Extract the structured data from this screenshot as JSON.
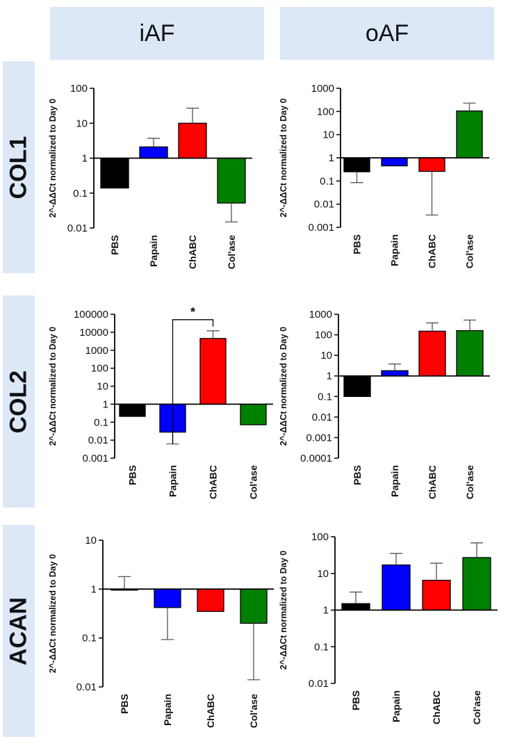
{
  "columns": [
    "iAF",
    "oAF"
  ],
  "rows": [
    "COL1",
    "COL2",
    "ACAN"
  ],
  "colors": {
    "PBS": "#000000",
    "Papain": "#0000ff",
    "ChABC": "#ff0000",
    "Col'ase": "#008000",
    "header_bg": "#dce8f6"
  },
  "chart_data": [
    {
      "type": "bar",
      "panel": "COL1-iAF",
      "title": "",
      "ylabel": "2^-ΔΔCt normalized to Day 0",
      "yscale": "log",
      "baseline": 1,
      "ylim": [
        0.01,
        100
      ],
      "yticks": [
        0.01,
        0.1,
        1,
        10,
        100
      ],
      "ytick_labels": [
        "0.01",
        "0.1",
        "1",
        "10",
        "100"
      ],
      "categories": [
        "PBS",
        "Papain",
        "ChABC",
        "Col'ase"
      ],
      "values": [
        0.14,
        2.1,
        10,
        0.052
      ],
      "error_ends": [
        null,
        3.7,
        27,
        0.015
      ]
    },
    {
      "type": "bar",
      "panel": "COL1-oAF",
      "title": "",
      "ylabel": "2^-ΔΔCt normalized to Day 0",
      "yscale": "log",
      "baseline": 1,
      "ylim": [
        0.001,
        1000
      ],
      "yticks": [
        0.001,
        0.01,
        0.1,
        1,
        10,
        100,
        1000
      ],
      "ytick_labels": [
        "0.001",
        "0.01",
        "0.1",
        "1",
        "10",
        "100",
        "1000"
      ],
      "categories": [
        "PBS",
        "Papain",
        "ChABC",
        "Col'ase"
      ],
      "values": [
        0.25,
        0.45,
        0.26,
        105
      ],
      "error_ends": [
        0.085,
        null,
        0.0034,
        230
      ]
    },
    {
      "type": "bar",
      "panel": "COL2-iAF",
      "title": "",
      "ylabel": "2^-ΔΔCt normalized to Day 0",
      "yscale": "log",
      "baseline": 1,
      "ylim": [
        0.001,
        100000
      ],
      "yticks": [
        0.001,
        0.01,
        0.1,
        1,
        10,
        100,
        1000,
        10000,
        100000
      ],
      "ytick_labels": [
        "0.001",
        "0.01",
        "0.1",
        "1",
        "10",
        "100",
        "1000",
        "10000",
        "100000"
      ],
      "categories": [
        "PBS",
        "Papain",
        "ChABC",
        "Col'ase"
      ],
      "values": [
        0.21,
        0.028,
        4500,
        0.072
      ],
      "error_ends": [
        null,
        0.0062,
        12000,
        null
      ],
      "annotation": {
        "text": "*",
        "between": [
          "Papain",
          "ChABC"
        ],
        "y": 50000
      }
    },
    {
      "type": "bar",
      "panel": "COL2-oAF",
      "title": "",
      "ylabel": "2^-ΔΔCt normalized to Day 0",
      "yscale": "log",
      "baseline": 1,
      "ylim": [
        0.0001,
        1000
      ],
      "yticks": [
        0.0001,
        0.001,
        0.01,
        0.1,
        1,
        10,
        100,
        1000
      ],
      "ytick_labels": [
        "0.0001",
        "0.001",
        "0.01",
        "0.1",
        "1",
        "10",
        "100",
        "1000"
      ],
      "categories": [
        "PBS",
        "Papain",
        "ChABC",
        "Col'ase"
      ],
      "values": [
        0.1,
        1.8,
        150,
        160
      ],
      "error_ends": [
        null,
        3.8,
        380,
        520
      ]
    },
    {
      "type": "bar",
      "panel": "ACAN-iAF",
      "title": "",
      "ylabel": "2^-ΔΔCt normalized to Day 0",
      "yscale": "log",
      "baseline": 1,
      "ylim": [
        0.01,
        10
      ],
      "yticks": [
        0.01,
        0.1,
        1,
        10
      ],
      "ytick_labels": [
        "0.01",
        "0.1",
        "1",
        "10"
      ],
      "categories": [
        "PBS",
        "Papain",
        "ChABC",
        "Col'ase"
      ],
      "values": [
        1,
        0.42,
        0.35,
        0.2
      ],
      "error_ends": [
        1.8,
        0.093,
        null,
        0.014
      ]
    },
    {
      "type": "bar",
      "panel": "ACAN-oAF",
      "title": "",
      "ylabel": "2^-ΔΔCt normalized to Day 0",
      "yscale": "log",
      "baseline": 1,
      "ylim": [
        0.01,
        100
      ],
      "yticks": [
        0.01,
        0.1,
        1,
        10,
        100
      ],
      "ytick_labels": [
        "0.01",
        "0.1",
        "1",
        "10",
        "100"
      ],
      "categories": [
        "PBS",
        "Papain",
        "ChABC",
        "Col'ase"
      ],
      "values": [
        1.5,
        17,
        6.5,
        27
      ],
      "error_ends": [
        3.1,
        35,
        19,
        68
      ]
    }
  ]
}
